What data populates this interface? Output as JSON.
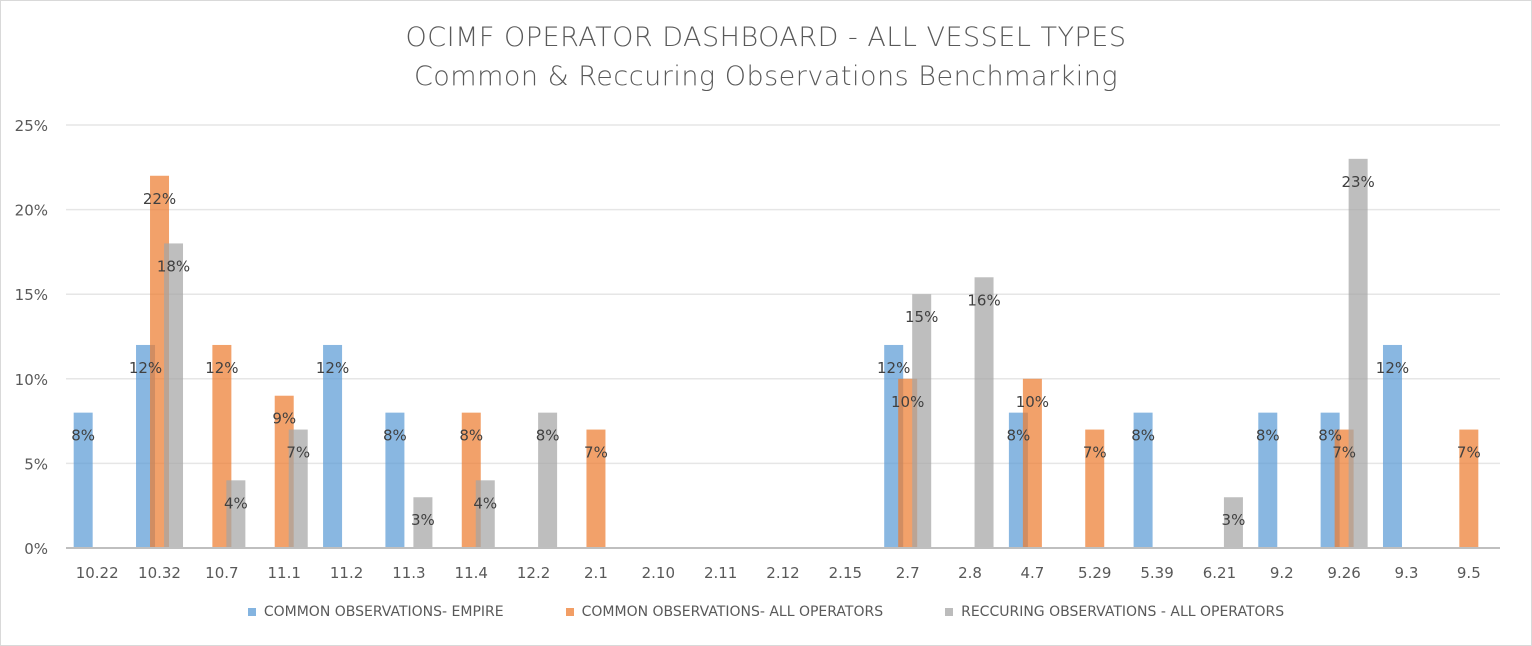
{
  "chart_data": {
    "type": "bar",
    "title": "OCIMF OPERATOR DASHBOARD -  ALL VESSEL TYPES",
    "subtitle": "Common & Reccuring Observations Benchmarking",
    "xlabel": "",
    "ylabel": "",
    "ylim": [
      0,
      0.25
    ],
    "yticks": [
      0,
      0.05,
      0.1,
      0.15,
      0.2,
      0.25
    ],
    "ytick_labels": [
      "0%",
      "5%",
      "10%",
      "15%",
      "20%",
      "25%"
    ],
    "grid": true,
    "legend_position": "bottom",
    "categories": [
      "10.22",
      "10.32",
      "10.7",
      "11.1",
      "11.2",
      "11.3",
      "11.4",
      "12.2",
      "2.1",
      "2.10",
      "2.11",
      "2.12",
      "2.15",
      "2.7",
      "2.8",
      "4.7",
      "5.29",
      "5.39",
      "6.21",
      "9.2",
      "9.26",
      "9.3",
      "9.5"
    ],
    "series": [
      {
        "name": "COMMON OBSERVATIONS- EMPIRE",
        "color": "#5B9BD5",
        "values": [
          0.08,
          0.12,
          null,
          null,
          0.12,
          0.08,
          null,
          null,
          null,
          null,
          null,
          null,
          null,
          0.12,
          null,
          0.08,
          null,
          0.08,
          null,
          0.08,
          0.08,
          0.12,
          null
        ]
      },
      {
        "name": "COMMON OBSERVATIONS- ALL OPERATORS",
        "color": "#ED7D31",
        "values": [
          null,
          0.22,
          0.12,
          0.09,
          null,
          null,
          0.08,
          null,
          0.07,
          null,
          null,
          null,
          null,
          0.1,
          null,
          0.1,
          0.07,
          null,
          null,
          null,
          0.07,
          null,
          0.07
        ]
      },
      {
        "name": "RECCURING OBSERVATIONS - ALL OPERATORS",
        "color": "#A5A5A5",
        "values": [
          null,
          0.18,
          0.04,
          0.07,
          null,
          0.03,
          0.04,
          0.08,
          null,
          null,
          null,
          null,
          null,
          0.15,
          0.16,
          null,
          null,
          null,
          0.03,
          null,
          0.23,
          null,
          null
        ]
      }
    ],
    "data_labels": true
  }
}
